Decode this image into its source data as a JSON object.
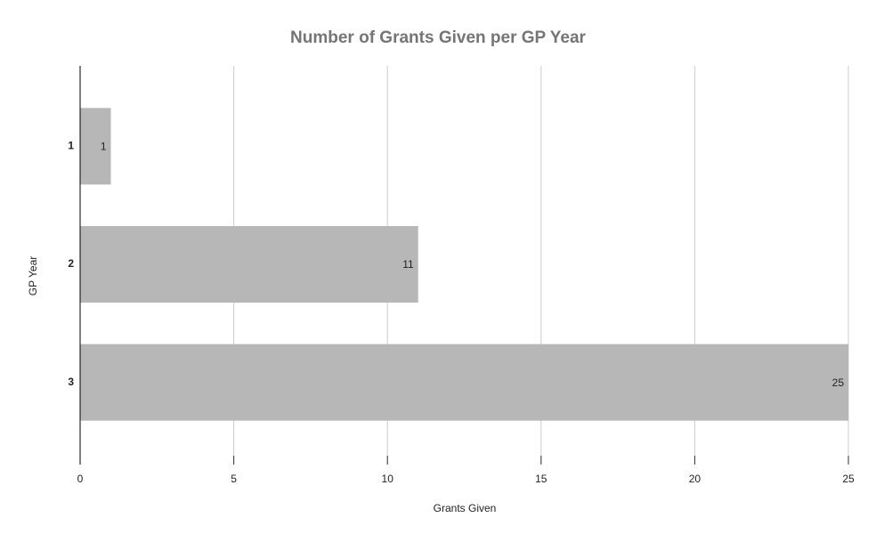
{
  "chart_data": {
    "type": "hbar",
    "title": "Number of Grants Given per GP Year",
    "x_label": "Grants Given",
    "y_label": "GP Year",
    "categories": [
      "1",
      "2",
      "3"
    ],
    "values": [
      1,
      11,
      25
    ],
    "color": "#b7b7b7",
    "xlim": [
      0,
      25
    ],
    "xticks": [
      0,
      5,
      10,
      15,
      20,
      25
    ],
    "grid": true
  }
}
